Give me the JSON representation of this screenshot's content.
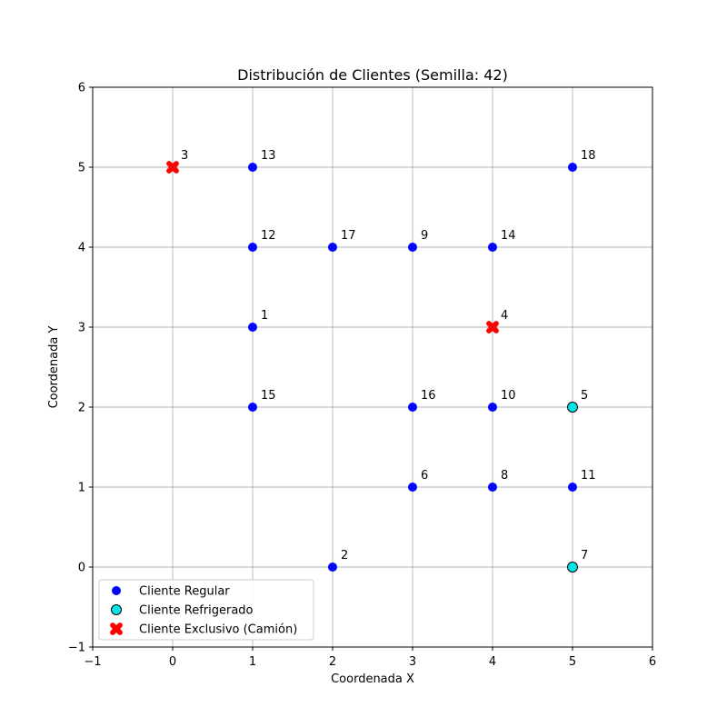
{
  "chart_data": {
    "type": "scatter",
    "title": "Distribución de Clientes (Semilla: 42)",
    "xlabel": "Coordenada X",
    "ylabel": "Coordenada Y",
    "xlim": [
      -1,
      6
    ],
    "ylim": [
      -1,
      6
    ],
    "xticks": [
      -1,
      0,
      1,
      2,
      3,
      4,
      5,
      6
    ],
    "yticks": [
      -1,
      0,
      1,
      2,
      3,
      4,
      5,
      6
    ],
    "grid": true,
    "legend_position": "lower-left",
    "series": [
      {
        "name": "Cliente Regular",
        "marker": "circle",
        "color": "#0000ff",
        "points": [
          {
            "id": "1",
            "x": 1,
            "y": 3
          },
          {
            "id": "2",
            "x": 2,
            "y": 0
          },
          {
            "id": "6",
            "x": 3,
            "y": 1
          },
          {
            "id": "8",
            "x": 4,
            "y": 1
          },
          {
            "id": "9",
            "x": 3,
            "y": 4
          },
          {
            "id": "10",
            "x": 4,
            "y": 2
          },
          {
            "id": "11",
            "x": 5,
            "y": 1
          },
          {
            "id": "12",
            "x": 1,
            "y": 4
          },
          {
            "id": "13",
            "x": 1,
            "y": 5
          },
          {
            "id": "14",
            "x": 4,
            "y": 4
          },
          {
            "id": "15",
            "x": 1,
            "y": 2
          },
          {
            "id": "16",
            "x": 3,
            "y": 2
          },
          {
            "id": "17",
            "x": 2,
            "y": 4
          },
          {
            "id": "18",
            "x": 5,
            "y": 5
          }
        ]
      },
      {
        "name": "Cliente Refrigerado",
        "marker": "circle-outlined",
        "color": "#00e5e5",
        "points": [
          {
            "id": "5",
            "x": 5,
            "y": 2
          },
          {
            "id": "7",
            "x": 5,
            "y": 0
          }
        ]
      },
      {
        "name": "Cliente Exclusivo (Camión)",
        "marker": "x-filled",
        "color": "#ff0000",
        "points": [
          {
            "id": "3",
            "x": 0,
            "y": 5
          },
          {
            "id": "4",
            "x": 4,
            "y": 3
          }
        ]
      }
    ]
  }
}
